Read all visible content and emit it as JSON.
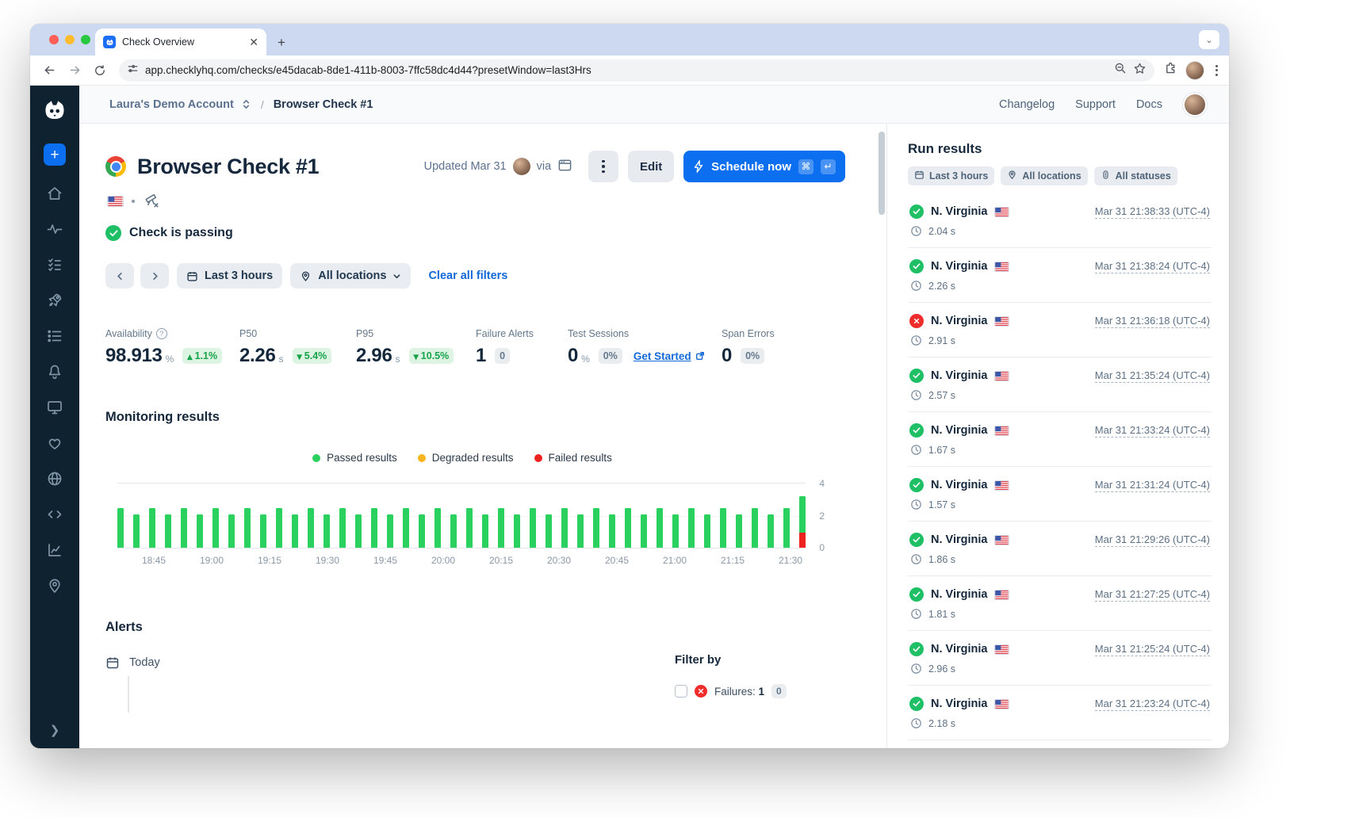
{
  "colors": {
    "accent": "#0b6ff0",
    "passed": "#2bd15f",
    "degraded": "#f6b51e",
    "failed": "#ee2121",
    "link": "#1469d8"
  },
  "browser": {
    "tab_title": "Check Overview",
    "url": "app.checklyhq.com/checks/e45dacab-8de1-411b-8003-7ffc58dc4d44?presetWindow=last3Hrs"
  },
  "sidebar": {
    "icons": [
      "home",
      "activity",
      "checks",
      "rocket",
      "queue",
      "bell",
      "dashboard",
      "heart",
      "globe",
      "code",
      "chart",
      "map-pin"
    ]
  },
  "header": {
    "account": "Laura's Demo Account",
    "separator": "/",
    "page": "Browser Check #1",
    "nav": [
      "Changelog",
      "Support",
      "Docs"
    ]
  },
  "check": {
    "title": "Browser Check #1",
    "updated": "Updated Mar 31",
    "via": "via",
    "kebab": "more-actions",
    "edit_label": "Edit",
    "schedule_label": "Schedule now",
    "shortcut_keys": [
      "⌘",
      "↵"
    ],
    "status": "Check is passing"
  },
  "filters": {
    "time_range": "Last 3 hours",
    "locations": "All locations",
    "clear": "Clear all filters"
  },
  "stats": [
    {
      "label": "Availability",
      "info": true,
      "value": "98.913",
      "unit": "%",
      "badge": "1.1%",
      "trend": "up",
      "badge_style": "green"
    },
    {
      "label": "P50",
      "info": false,
      "value": "2.26",
      "unit": "s",
      "badge": "5.4%",
      "trend": "down",
      "badge_style": "green"
    },
    {
      "label": "P95",
      "info": false,
      "value": "2.96",
      "unit": "s",
      "badge": "10.5%",
      "trend": "down",
      "badge_style": "green"
    },
    {
      "label": "Failure Alerts",
      "info": false,
      "value": "1",
      "unit": "",
      "badge": "0",
      "trend": null,
      "badge_style": "gray"
    },
    {
      "label": "Test Sessions",
      "info": false,
      "value": "0",
      "unit": "%",
      "badge": "0%",
      "trend": null,
      "badge_style": "gray",
      "link": "Get Started"
    },
    {
      "label": "Span Errors",
      "info": false,
      "value": "0",
      "unit": "",
      "badge": "0%",
      "trend": null,
      "badge_style": "gray"
    }
  ],
  "monitoring": {
    "title": "Monitoring results",
    "legend": [
      {
        "label": "Passed results",
        "color": "#2bd15f"
      },
      {
        "label": "Degraded results",
        "color": "#f6b51e"
      },
      {
        "label": "Failed results",
        "color": "#ee2121"
      }
    ]
  },
  "chart_data": {
    "type": "bar",
    "stacked": true,
    "title": "Monitoring results",
    "ylim": [
      0,
      4
    ],
    "yticks": [
      4,
      2,
      0
    ],
    "grid": true,
    "legend_position": "top-center",
    "x_labels": [
      "18:45",
      "19:00",
      "19:15",
      "19:30",
      "19:45",
      "20:00",
      "20:15",
      "20:30",
      "20:45",
      "21:00",
      "21:15",
      "21:30"
    ],
    "series_names": [
      "passed",
      "failed"
    ],
    "bars": [
      {
        "p": 2.4
      },
      {
        "p": 2
      },
      {
        "p": 2.4
      },
      {
        "p": 2
      },
      {
        "p": 2.4
      },
      {
        "p": 2
      },
      {
        "p": 2.4
      },
      {
        "p": 2
      },
      {
        "p": 2.4
      },
      {
        "p": 2
      },
      {
        "p": 2.4
      },
      {
        "p": 2
      },
      {
        "p": 2.4
      },
      {
        "p": 2
      },
      {
        "p": 2.4
      },
      {
        "p": 2
      },
      {
        "p": 2.4
      },
      {
        "p": 2
      },
      {
        "p": 2.4
      },
      {
        "p": 2
      },
      {
        "p": 2.4
      },
      {
        "p": 2
      },
      {
        "p": 2.4
      },
      {
        "p": 2
      },
      {
        "p": 2.4
      },
      {
        "p": 2
      },
      {
        "p": 2.4
      },
      {
        "p": 2
      },
      {
        "p": 2.4
      },
      {
        "p": 2
      },
      {
        "p": 2.4
      },
      {
        "p": 2
      },
      {
        "p": 2.4
      },
      {
        "p": 2
      },
      {
        "p": 2.4
      },
      {
        "p": 2
      },
      {
        "p": 2.4
      },
      {
        "p": 2
      },
      {
        "p": 2.4
      },
      {
        "p": 2
      },
      {
        "p": 2.4
      },
      {
        "p": 2
      },
      {
        "p": 2.4
      },
      {
        "p": 2.2,
        "f": 0.9
      }
    ]
  },
  "alerts": {
    "title": "Alerts",
    "date_label": "Today",
    "filter_by": "Filter by",
    "failures_label": "Failures:",
    "failures_count": "1",
    "failures_badge": "0"
  },
  "run_results": {
    "title": "Run results",
    "chips": [
      {
        "icon": "calendar-icon",
        "label": "Last 3 hours"
      },
      {
        "icon": "pin-icon",
        "label": "All locations"
      },
      {
        "icon": "statuses-icon",
        "label": "All statuses"
      }
    ],
    "rows": [
      {
        "status": "passed",
        "location": "N. Virginia",
        "timestamp": "Mar 31 21:38:33 (UTC-4)",
        "duration": "2.04 s"
      },
      {
        "status": "passed",
        "location": "N. Virginia",
        "timestamp": "Mar 31 21:38:24 (UTC-4)",
        "duration": "2.26 s"
      },
      {
        "status": "failed",
        "location": "N. Virginia",
        "timestamp": "Mar 31 21:36:18 (UTC-4)",
        "duration": "2.91 s"
      },
      {
        "status": "passed",
        "location": "N. Virginia",
        "timestamp": "Mar 31 21:35:24 (UTC-4)",
        "duration": "2.57 s"
      },
      {
        "status": "passed",
        "location": "N. Virginia",
        "timestamp": "Mar 31 21:33:24 (UTC-4)",
        "duration": "1.67 s"
      },
      {
        "status": "passed",
        "location": "N. Virginia",
        "timestamp": "Mar 31 21:31:24 (UTC-4)",
        "duration": "1.57 s"
      },
      {
        "status": "passed",
        "location": "N. Virginia",
        "timestamp": "Mar 31 21:29:26 (UTC-4)",
        "duration": "1.86 s"
      },
      {
        "status": "passed",
        "location": "N. Virginia",
        "timestamp": "Mar 31 21:27:25 (UTC-4)",
        "duration": "1.81 s"
      },
      {
        "status": "passed",
        "location": "N. Virginia",
        "timestamp": "Mar 31 21:25:24 (UTC-4)",
        "duration": "2.96 s"
      },
      {
        "status": "passed",
        "location": "N. Virginia",
        "timestamp": "Mar 31 21:23:24 (UTC-4)",
        "duration": "2.18 s"
      }
    ]
  }
}
